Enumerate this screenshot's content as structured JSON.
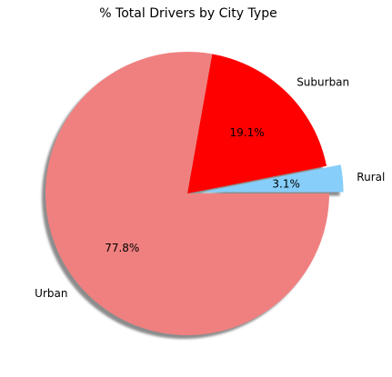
{
  "chart_data": {
    "type": "pie",
    "title": "% Total Drivers by City Type",
    "categories": [
      "Rural",
      "Suburban",
      "Urban"
    ],
    "values": [
      3.1,
      19.1,
      77.8
    ],
    "labels": [
      "3.1%",
      "19.1%",
      "77.8%"
    ],
    "colors": [
      "#87cefa",
      "#ff0000",
      "#f08080"
    ],
    "explode": [
      0.1,
      0,
      0
    ],
    "start_angle_deg": 0,
    "shadow": true,
    "legend": "none"
  }
}
